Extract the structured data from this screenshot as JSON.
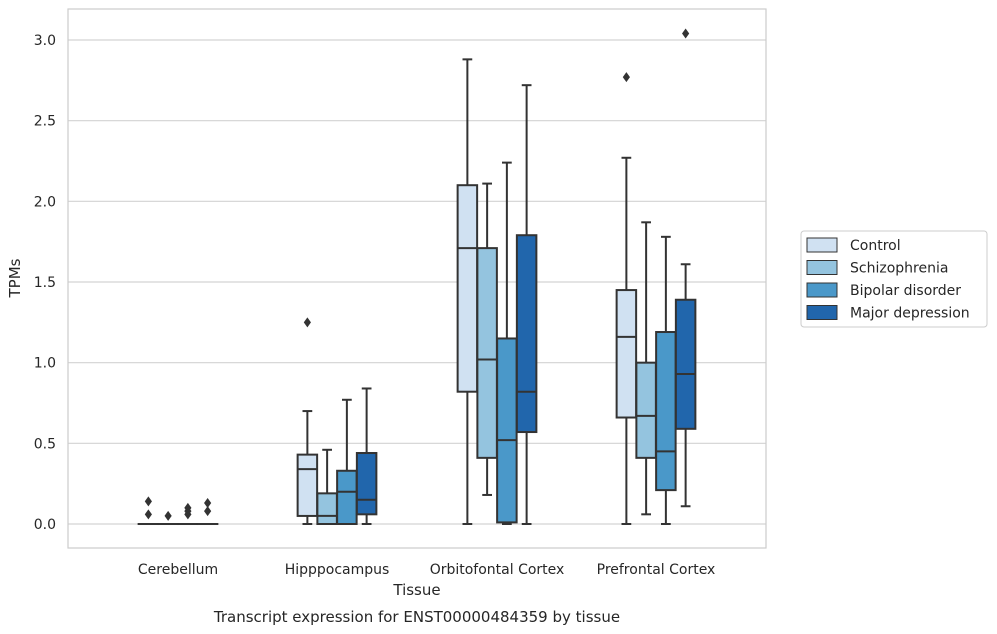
{
  "chart_data": {
    "type": "box",
    "xlabel": "Tissue",
    "ylabel": "TPMs",
    "caption": "Transcript expression for ENST00000484359 by tissue",
    "ylim": [
      -0.15,
      3.2
    ],
    "yticks": [
      0.0,
      0.5,
      1.0,
      1.5,
      2.0,
      2.5,
      3.0
    ],
    "ytick_labels": [
      "0.0",
      "0.5",
      "1.0",
      "1.5",
      "2.0",
      "2.5",
      "3.0"
    ],
    "grid": "horizontal",
    "legend_position": "right",
    "categories": [
      "Cerebellum",
      "Hipppocampus",
      "Orbitofontal Cortex",
      "Prefrontal Cortex"
    ],
    "series": [
      {
        "name": "Control",
        "color": "#d0e1f2",
        "boxes": [
          {
            "min": 0.0,
            "q1": 0.0,
            "median": 0.0,
            "q3": 0.0,
            "max": 0.0,
            "outliers": [
              0.06,
              0.14
            ]
          },
          {
            "min": 0.0,
            "q1": 0.05,
            "median": 0.34,
            "q3": 0.43,
            "max": 0.7,
            "outliers": [
              1.25
            ]
          },
          {
            "min": 0.0,
            "q1": 0.82,
            "median": 1.71,
            "q3": 2.1,
            "max": 2.88,
            "outliers": []
          },
          {
            "min": 0.0,
            "q1": 0.66,
            "median": 1.16,
            "q3": 1.45,
            "max": 2.27,
            "outliers": [
              2.77
            ]
          }
        ]
      },
      {
        "name": "Schizophrenia",
        "color": "#94c4df",
        "boxes": [
          {
            "min": 0.0,
            "q1": 0.0,
            "median": 0.0,
            "q3": 0.0,
            "max": 0.0,
            "outliers": [
              0.05
            ]
          },
          {
            "min": 0.0,
            "q1": 0.0,
            "median": 0.05,
            "q3": 0.19,
            "max": 0.46,
            "outliers": []
          },
          {
            "min": 0.18,
            "q1": 0.41,
            "median": 1.02,
            "q3": 1.71,
            "max": 2.11,
            "outliers": []
          },
          {
            "min": 0.06,
            "q1": 0.41,
            "median": 0.67,
            "q3": 1.0,
            "max": 1.87,
            "outliers": []
          }
        ]
      },
      {
        "name": "Bipolar disorder",
        "color": "#4a98c9",
        "boxes": [
          {
            "min": 0.0,
            "q1": 0.0,
            "median": 0.0,
            "q3": 0.0,
            "max": 0.0,
            "outliers": [
              0.06,
              0.08,
              0.1
            ]
          },
          {
            "min": 0.0,
            "q1": 0.0,
            "median": 0.2,
            "q3": 0.33,
            "max": 0.77,
            "outliers": []
          },
          {
            "min": 0.0,
            "q1": 0.01,
            "median": 0.52,
            "q3": 1.15,
            "max": 2.24,
            "outliers": []
          },
          {
            "min": 0.0,
            "q1": 0.21,
            "median": 0.45,
            "q3": 1.19,
            "max": 1.78,
            "outliers": []
          }
        ]
      },
      {
        "name": "Major depression",
        "color": "#2166ac",
        "boxes": [
          {
            "min": 0.0,
            "q1": 0.0,
            "median": 0.0,
            "q3": 0.0,
            "max": 0.0,
            "outliers": [
              0.08,
              0.13
            ]
          },
          {
            "min": 0.0,
            "q1": 0.06,
            "median": 0.15,
            "q3": 0.44,
            "max": 0.84,
            "outliers": []
          },
          {
            "min": 0.0,
            "q1": 0.57,
            "median": 0.82,
            "q3": 1.79,
            "max": 2.72,
            "outliers": []
          },
          {
            "min": 0.11,
            "q1": 0.59,
            "median": 0.93,
            "q3": 1.39,
            "max": 1.61,
            "outliers": [
              3.04
            ]
          }
        ]
      }
    ]
  }
}
